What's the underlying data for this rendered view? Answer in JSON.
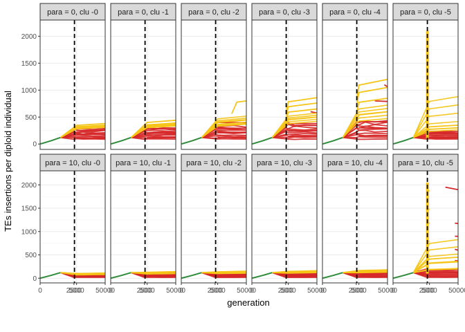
{
  "chart_data": {
    "type": "line",
    "title": "",
    "xlabel": "generation",
    "ylabel": "TEs insertions per diploid individual",
    "facet_rows": [
      "para = 0",
      "para = 10"
    ],
    "facet_cols": [
      "clu -0",
      "clu -1",
      "clu -2",
      "clu -3",
      "clu -4",
      "clu -5"
    ],
    "panels": [
      {
        "label": "para = 0, clu -0",
        "trace": {
          "red_low": 100,
          "red_high": 300,
          "yellow_high": 380,
          "yellow_lines": [
            {
              "y": 310
            },
            {
              "y": 350
            },
            {
              "y": 380
            }
          ],
          "red_lines": [
            {
              "y": 110
            },
            {
              "y": 180
            },
            {
              "y": 250
            },
            {
              "y": 320
            }
          ]
        }
      },
      {
        "label": "para = 0, clu -1",
        "trace": {
          "red_low": 100,
          "red_high": 320,
          "yellow_high": 440,
          "yellow_lines": [
            {
              "y": 340
            },
            {
              "y": 390
            },
            {
              "y": 440
            }
          ],
          "red_lines": [
            {
              "y": 120
            },
            {
              "y": 200
            },
            {
              "y": 280
            },
            {
              "y": 350
            }
          ]
        }
      },
      {
        "label": "para = 0, clu -2",
        "trace": {
          "red_low": 100,
          "red_high": 350,
          "yellow_high": 800,
          "yellow_lines": [
            {
              "y": 380
            },
            {
              "y": 450
            },
            {
              "y": 800,
              "start": 27000
            }
          ],
          "red_lines": [
            {
              "y": 120
            },
            {
              "y": 220
            },
            {
              "y": 300
            },
            {
              "y": 400
            }
          ]
        }
      },
      {
        "label": "para = 0, clu -3",
        "trace": {
          "red_low": 100,
          "red_high": 400,
          "yellow_high": 860,
          "yellow_lines": [
            {
              "y": 500,
              "start": 3000
            },
            {
              "y": 650,
              "start": 3000
            },
            {
              "y": 760,
              "start": 3000
            },
            {
              "y": 860,
              "start": 3000
            }
          ],
          "red_lines": [
            {
              "y": 140
            },
            {
              "y": 240
            },
            {
              "y": 380
            },
            {
              "y": 600,
              "start": 40000
            }
          ]
        }
      },
      {
        "label": "para = 0, clu -4",
        "trace": {
          "red_low": 100,
          "red_high": 450,
          "yellow_high": 1200,
          "yellow_lines": [
            {
              "y": 600,
              "start": 3000
            },
            {
              "y": 850,
              "start": 3000
            },
            {
              "y": 1050,
              "start": 3000
            },
            {
              "y": 1200,
              "start": 3000
            }
          ],
          "red_lines": [
            {
              "y": 150
            },
            {
              "y": 300
            },
            {
              "y": 420
            },
            {
              "y": 800,
              "start": 30000
            },
            {
              "y": 1100,
              "start": 45000
            }
          ]
        }
      },
      {
        "label": "para = 0, clu -5",
        "trace": {
          "red_low": 100,
          "red_high": 250,
          "yellow_high": 2100,
          "yellow_lines": [
            {
              "y": 300
            },
            {
              "y": 350
            }
          ],
          "red_lines": [
            {
              "y": 120
            },
            {
              "y": 200
            }
          ],
          "spike": 2100
        }
      },
      {
        "label": "para = 10, clu -0",
        "trace": {
          "red_low": 20,
          "red_high": 100,
          "yellow_high": 110,
          "yellow_lines": [
            {
              "y": 80
            },
            {
              "y": 110
            }
          ],
          "red_lines": [
            {
              "y": 40
            },
            {
              "y": 70
            },
            {
              "y": 100
            }
          ]
        }
      },
      {
        "label": "para = 10, clu -1",
        "trace": {
          "red_low": 20,
          "red_high": 120,
          "yellow_high": 140,
          "yellow_lines": [
            {
              "y": 100
            },
            {
              "y": 140
            }
          ],
          "red_lines": [
            {
              "y": 40
            },
            {
              "y": 80
            },
            {
              "y": 120
            }
          ]
        }
      },
      {
        "label": "para = 10, clu -2",
        "trace": {
          "red_low": 20,
          "red_high": 120,
          "yellow_high": 150,
          "yellow_lines": [
            {
              "y": 110
            },
            {
              "y": 150
            }
          ],
          "red_lines": [
            {
              "y": 40
            },
            {
              "y": 80
            },
            {
              "y": 130
            }
          ]
        }
      },
      {
        "label": "para = 10, clu -3",
        "trace": {
          "red_low": 20,
          "red_high": 130,
          "yellow_high": 160,
          "yellow_lines": [
            {
              "y": 120
            },
            {
              "y": 160
            }
          ],
          "red_lines": [
            {
              "y": 40
            },
            {
              "y": 90
            },
            {
              "y": 140
            }
          ]
        }
      },
      {
        "label": "para = 10, clu -4",
        "trace": {
          "red_low": 20,
          "red_high": 140,
          "yellow_high": 180,
          "yellow_lines": [
            {
              "y": 130
            },
            {
              "y": 180
            }
          ],
          "red_lines": [
            {
              "y": 40
            },
            {
              "y": 90
            },
            {
              "y": 150
            }
          ]
        }
      },
      {
        "label": "para = 10, clu -5",
        "trace": {
          "red_low": 20,
          "red_high": 200,
          "yellow_high": 2050,
          "yellow_lines": [
            {
              "y": 200
            },
            {
              "y": 350
            },
            {
              "y": 450
            }
          ],
          "red_lines": [
            {
              "y": 40
            },
            {
              "y": 120
            },
            {
              "y": 1950,
              "start": 30000
            },
            {
              "y": 1180,
              "start": 45000
            },
            {
              "y": 900,
              "start": 45000
            },
            {
              "y": 620,
              "start": 45000
            },
            {
              "y": 380,
              "start": 45000
            }
          ],
          "spike": 2050,
          "fan": [
            {
              "y": 1900,
              "start": 3000,
              "end": 5000
            },
            {
              "y": 1500,
              "start": 3000,
              "end": 5000
            },
            {
              "y": 1200,
              "start": 3000,
              "end": 5000
            },
            {
              "y": 800,
              "start": 3000,
              "end": 5000
            },
            {
              "y": 500,
              "start": 3000,
              "end": 5000
            }
          ]
        }
      }
    ],
    "x_axis": {
      "ticks": [
        0,
        2500,
        5000,
        50000
      ],
      "tick_labels": [
        "0",
        "2500",
        "5000",
        "50000"
      ],
      "range": [
        0,
        50000
      ]
    },
    "y_axis": {
      "ticks": [
        0,
        500,
        1000,
        1500,
        2000
      ],
      "tick_labels": [
        "0",
        "500",
        "1000",
        "1500",
        "2000"
      ],
      "range": [
        -100,
        2300
      ]
    },
    "reference_line": {
      "x": 3000,
      "style": "dashed"
    },
    "series_colors": {
      "early": "#2e8b3a",
      "yellow": "#f5c518",
      "red": "#d62828"
    },
    "grid": true,
    "legend": "none"
  }
}
